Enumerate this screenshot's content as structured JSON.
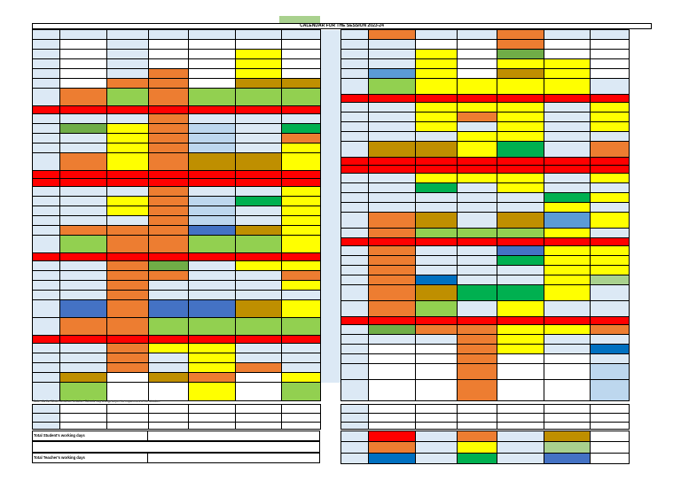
{
  "header": {
    "title": "CALENDAR FOR THE SESSION 2023-24"
  },
  "note": "Note : As the Winter Break are tentative. Schools may change as per the requirement of the situation.",
  "summary_labels": {
    "students": "Total Student's working days",
    "teachers": "Total Teacher's working days"
  },
  "colors": {
    "B": "#dce9f5",
    "W": "#ffffff",
    "O": "#ed7d31",
    "Y": "#ffff00",
    "G": "#92d050",
    "DG": "#70ad47",
    "BR": "#bf8f00",
    "R": "#ff0000",
    "SB": "#bdd7ee",
    "MB": "#4472c4",
    "DB": "#0070c0",
    "EG": "#00b050",
    "LG": "#a9d18e",
    "PB": "#5b9bd5"
  },
  "left_rows": [
    [
      "B",
      "B",
      "B",
      "B",
      "B",
      "B",
      "B"
    ],
    [
      "B",
      "W",
      "B",
      "W",
      "W",
      "W",
      "W"
    ],
    [
      "B",
      "W",
      "B",
      "W",
      "W",
      "Y",
      "W"
    ],
    [
      "B",
      "W",
      "B",
      "W",
      "W",
      "Y",
      "W"
    ],
    [
      "B",
      "W",
      "B",
      "O",
      "W",
      "Y",
      "W"
    ],
    [
      "B",
      "W",
      "O",
      "O",
      "W",
      "BR",
      "BR"
    ],
    [
      "B",
      "O",
      "G",
      "O",
      "G",
      "G",
      "G"
    ],
    [
      "R",
      "R",
      "R",
      "R",
      "R",
      "R",
      "R"
    ],
    [
      "B",
      "B",
      "B",
      "O",
      "B",
      "B",
      "B"
    ],
    [
      "B",
      "DG",
      "Y",
      "O",
      "SB",
      "B",
      "EG"
    ],
    [
      "B",
      "B",
      "Y",
      "O",
      "SB",
      "B",
      "O"
    ],
    [
      "B",
      "B",
      "Y",
      "O",
      "SB",
      "B",
      "Y"
    ],
    [
      "B",
      "O",
      "Y",
      "O",
      "BR",
      "BR",
      "Y"
    ],
    [
      "R",
      "R",
      "R",
      "R",
      "R",
      "R",
      "R"
    ],
    [
      "R",
      "R",
      "R",
      "R",
      "R",
      "R",
      "R"
    ],
    [
      "B",
      "B",
      "B",
      "O",
      "B",
      "B",
      "Y"
    ],
    [
      "B",
      "B",
      "Y",
      "O",
      "SB",
      "EG",
      "Y"
    ],
    [
      "B",
      "B",
      "Y",
      "O",
      "SB",
      "B",
      "Y"
    ],
    [
      "B",
      "B",
      "B",
      "O",
      "SB",
      "B",
      "Y"
    ],
    [
      "B",
      "O",
      "O",
      "O",
      "MB",
      "BR",
      "Y"
    ],
    [
      "B",
      "G",
      "O",
      "O",
      "G",
      "G",
      "Y"
    ],
    [
      "R",
      "R",
      "R",
      "R",
      "R",
      "R",
      "R"
    ],
    [
      "B",
      "B",
      "O",
      "DG",
      "B",
      "Y",
      "Y"
    ],
    [
      "B",
      "B",
      "O",
      "O",
      "B",
      "B",
      "O"
    ],
    [
      "B",
      "B",
      "O",
      "B",
      "B",
      "B",
      "Y"
    ],
    [
      "B",
      "B",
      "O",
      "B",
      "B",
      "B",
      "B"
    ],
    [
      "B",
      "MB",
      "O",
      "MB",
      "MB",
      "BR",
      "Y"
    ],
    [
      "B",
      "O",
      "O",
      "G",
      "G",
      "G",
      "G"
    ],
    [
      "R",
      "R",
      "R",
      "R",
      "R",
      "R",
      "R"
    ],
    [
      "B",
      "B",
      "O",
      "Y",
      "Y",
      "B",
      "B"
    ],
    [
      "B",
      "B",
      "O",
      "B",
      "Y",
      "B",
      "B"
    ],
    [
      "B",
      "B",
      "O",
      "B",
      "Y",
      "O",
      "B"
    ],
    [
      "B",
      "BR",
      "W",
      "BR",
      "O",
      "W",
      "Y"
    ],
    [
      "B",
      "G",
      "W",
      "W",
      "Y",
      "W",
      "G"
    ]
  ],
  "right_rows": [
    [
      "B",
      "O",
      "B",
      "B",
      "O",
      "B",
      "B"
    ],
    [
      "B",
      "B",
      "W",
      "W",
      "O",
      "W",
      "W"
    ],
    [
      "B",
      "B",
      "Y",
      "W",
      "DG",
      "W",
      "W"
    ],
    [
      "B",
      "B",
      "Y",
      "W",
      "Y",
      "Y",
      "W"
    ],
    [
      "B",
      "PB",
      "Y",
      "W",
      "BR",
      "Y",
      "W"
    ],
    [
      "B",
      "G",
      "Y",
      "Y",
      "Y",
      "Y",
      "B"
    ],
    [
      "R",
      "R",
      "R",
      "R",
      "R",
      "R",
      "R"
    ],
    [
      "B",
      "B",
      "Y",
      "Y",
      "Y",
      "B",
      "Y"
    ],
    [
      "B",
      "B",
      "Y",
      "O",
      "Y",
      "B",
      "Y"
    ],
    [
      "B",
      "B",
      "Y",
      "B",
      "Y",
      "B",
      "Y"
    ],
    [
      "B",
      "B",
      "B",
      "Y",
      "Y",
      "B",
      "B"
    ],
    [
      "B",
      "BR",
      "BR",
      "Y",
      "EG",
      "B",
      "O"
    ],
    [
      "R",
      "R",
      "R",
      "R",
      "R",
      "R",
      "R"
    ],
    [
      "R",
      "R",
      "R",
      "R",
      "R",
      "R",
      "R"
    ],
    [
      "B",
      "B",
      "Y",
      "Y",
      "Y",
      "B",
      "Y"
    ],
    [
      "B",
      "B",
      "EG",
      "B",
      "Y",
      "B",
      "B"
    ],
    [
      "B",
      "B",
      "B",
      "B",
      "B",
      "EG",
      "Y"
    ],
    [
      "B",
      "B",
      "B",
      "B",
      "B",
      "Y",
      "B"
    ],
    [
      "B",
      "O",
      "BR",
      "B",
      "BR",
      "PB",
      "Y"
    ],
    [
      "B",
      "O",
      "G",
      "G",
      "G",
      "Y",
      "B"
    ],
    [
      "R",
      "R",
      "R",
      "R",
      "R",
      "R",
      "R"
    ],
    [
      "B",
      "O",
      "B",
      "B",
      "MB",
      "Y",
      "Y"
    ],
    [
      "B",
      "O",
      "B",
      "B",
      "EG",
      "Y",
      "Y"
    ],
    [
      "B",
      "O",
      "B",
      "B",
      "B",
      "Y",
      "Y"
    ],
    [
      "B",
      "O",
      "DB",
      "B",
      "B",
      "Y",
      "LG"
    ],
    [
      "B",
      "O",
      "BR",
      "EG",
      "EG",
      "Y",
      "B"
    ],
    [
      "B",
      "O",
      "G",
      "B",
      "Y",
      "B",
      "B"
    ],
    [
      "R",
      "R",
      "R",
      "R",
      "R",
      "R",
      "R"
    ],
    [
      "B",
      "DG",
      "O",
      "O",
      "Y",
      "Y",
      "O"
    ],
    [
      "B",
      "B",
      "B",
      "O",
      "Y",
      "B",
      "B"
    ],
    [
      "B",
      "W",
      "W",
      "O",
      "Y",
      "B",
      "DB"
    ],
    [
      "B",
      "W",
      "W",
      "O",
      "W",
      "W",
      "B"
    ],
    [
      "B",
      "W",
      "W",
      "O",
      "W",
      "W",
      "SB"
    ],
    [
      "B",
      "W",
      "W",
      "O",
      "W",
      "W",
      "SB"
    ]
  ],
  "left_lower_rows": [
    [
      "B",
      "W",
      "W",
      "W",
      "W",
      "W",
      "W"
    ],
    [
      "B",
      "W",
      "W",
      "W",
      "W",
      "W",
      "W"
    ],
    [
      "B",
      "W",
      "W",
      "W",
      "W",
      "W",
      "W"
    ]
  ],
  "right_lower_rows": [
    [
      "B",
      "W",
      "W",
      "W",
      "W",
      "W",
      "W"
    ],
    [
      "B",
      "W",
      "W",
      "W",
      "W",
      "W",
      "W"
    ],
    [
      "B",
      "W",
      "W",
      "W",
      "W",
      "W",
      "W"
    ]
  ],
  "right_summary_rows": [
    [
      "B",
      "R",
      "B",
      "O",
      "B",
      "BR",
      "W"
    ],
    [
      "B",
      "O",
      "B",
      "Y",
      "B",
      "LG",
      "W"
    ],
    [
      "B",
      "DB",
      "B",
      "EG",
      "B",
      "MB",
      "W"
    ]
  ]
}
